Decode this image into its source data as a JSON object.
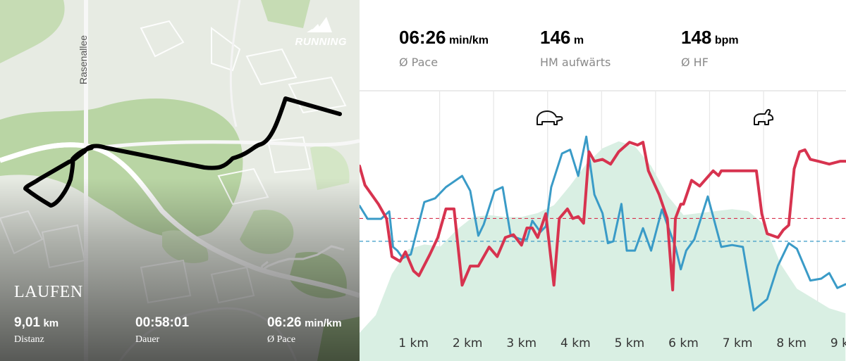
{
  "map": {
    "street_label": "Rasenallee",
    "brand_text": "RUNNING",
    "brand_logo_icon": "adidas-logo-icon",
    "activity_title": "LAUFEN",
    "route_color": "#000000",
    "stats": {
      "distance": {
        "value": "9,01",
        "unit": "km",
        "label": "Distanz"
      },
      "duration": {
        "value": "00:58:01",
        "label": "Dauer"
      },
      "pace": {
        "value": "06:26",
        "unit": "min/km",
        "label": "Ø Pace"
      }
    }
  },
  "summary": {
    "pace": {
      "value": "06:26",
      "unit": "min/km",
      "label": "Ø Pace",
      "color": "#3a9bc7"
    },
    "elevation": {
      "value": "146",
      "unit": "m",
      "label": "HM aufwärts",
      "color": "#4caf6a"
    },
    "heart_rate": {
      "value": "148",
      "unit": "bpm",
      "label": "Ø HF",
      "color": "#d7334f"
    }
  },
  "markers": {
    "slowest_icon": "turtle-icon",
    "fastest_icon": "rabbit-icon"
  },
  "chart_data": {
    "type": "line",
    "x_label_unit": "km",
    "x_ticks": [
      "1 km",
      "2 km",
      "3 km",
      "4 km",
      "5 km",
      "6 km",
      "7 km",
      "8 km",
      "9 km"
    ],
    "xlim": [
      0,
      9.01
    ],
    "grid": "vertical",
    "series": [
      {
        "name": "Ø Pace",
        "color": "#3a9bc7",
        "x": [
          0,
          0.15,
          0.4,
          0.55,
          0.62,
          0.7,
          0.8,
          0.95,
          1.2,
          1.4,
          1.6,
          1.9,
          2.05,
          2.2,
          2.3,
          2.5,
          2.65,
          2.8,
          3.0,
          3.1,
          3.2,
          3.35,
          3.45,
          3.55,
          3.75,
          3.9,
          4.05,
          4.2,
          4.35,
          4.5,
          4.6,
          4.7,
          4.85,
          4.95,
          5.1,
          5.25,
          5.4,
          5.6,
          5.85,
          5.95,
          6.05,
          6.2,
          6.45,
          6.7,
          6.9,
          7.1,
          7.3,
          7.55,
          7.75,
          7.95,
          8.1,
          8.35,
          8.55,
          8.7,
          8.85,
          9.0
        ],
        "y": [
          1.4,
          1.05,
          1.05,
          1.25,
          0.3,
          0.2,
          0.0,
          0.1,
          1.5,
          1.6,
          1.9,
          2.2,
          1.8,
          0.6,
          0.9,
          1.8,
          1.9,
          0.6,
          0.5,
          0.5,
          1.0,
          0.7,
          0.85,
          1.9,
          2.8,
          2.9,
          2.2,
          3.25,
          1.7,
          1.2,
          0.4,
          0.45,
          1.45,
          0.2,
          0.2,
          0.8,
          0.2,
          1.3,
          0.3,
          -0.3,
          0.2,
          0.5,
          1.65,
          0.3,
          0.35,
          0.3,
          -1.4,
          -1.1,
          -0.2,
          0.4,
          0.25,
          -0.6,
          -0.55,
          -0.4,
          -0.8,
          -0.7
        ]
      },
      {
        "name": "Ø HF",
        "color": "#d7334f",
        "x": [
          0,
          0.1,
          0.35,
          0.5,
          0.6,
          0.75,
          0.85,
          1.0,
          1.1,
          1.3,
          1.45,
          1.6,
          1.75,
          1.9,
          2.05,
          2.2,
          2.4,
          2.55,
          2.7,
          2.85,
          3.0,
          3.1,
          3.2,
          3.3,
          3.45,
          3.6,
          3.7,
          3.85,
          3.95,
          4.05,
          4.15,
          4.25,
          4.35,
          4.5,
          4.65,
          4.8,
          5.0,
          5.15,
          5.25,
          5.35,
          5.55,
          5.7,
          5.8,
          5.85,
          5.95,
          6.0,
          6.15,
          6.3,
          6.55,
          6.65,
          6.7,
          6.85,
          7.0,
          7.2,
          7.35,
          7.45,
          7.55,
          7.75,
          7.85,
          7.95,
          8.05,
          8.15,
          8.25,
          8.35,
          8.5,
          8.7,
          8.9,
          9.0
        ],
        "y": [
          153.5,
          151.5,
          149.5,
          148,
          144,
          143.5,
          144.5,
          142.5,
          142,
          144.2,
          146,
          149,
          149,
          141,
          143,
          143,
          145,
          144,
          146,
          146.3,
          145.2,
          147,
          147,
          146,
          148.5,
          141,
          148,
          149,
          148,
          148.2,
          147.5,
          155,
          154,
          154.2,
          153.7,
          155,
          156,
          155.7,
          156,
          153,
          150.5,
          148,
          140.5,
          148,
          149.5,
          149.5,
          152,
          151.4,
          153,
          152.5,
          153,
          153,
          153,
          153,
          153,
          148.5,
          146.4,
          146,
          146.8,
          147.3,
          153.2,
          155,
          155.2,
          154.2,
          154,
          153.7,
          154,
          154
        ]
      },
      {
        "name": "HM aufwärts",
        "color": "#d9efe3",
        "type": "area",
        "x": [
          0,
          0.3,
          0.6,
          0.9,
          1.2,
          1.5,
          1.8,
          2.1,
          2.4,
          2.7,
          3.0,
          3.3,
          3.6,
          3.9,
          4.2,
          4.5,
          4.8,
          5.1,
          5.4,
          5.7,
          6.0,
          6.3,
          6.6,
          6.9,
          7.2,
          7.5,
          7.8,
          8.1,
          8.4,
          8.7,
          9.0
        ],
        "y": [
          0,
          18,
          60,
          85,
          90,
          88,
          105,
          118,
          120,
          118,
          118,
          122,
          130,
          150,
          172,
          188,
          195,
          190,
          170,
          140,
          120,
          122,
          124,
          126,
          124,
          110,
          70,
          45,
          35,
          25,
          20
        ]
      }
    ],
    "reference_lines": [
      {
        "series": "Ø HF",
        "value": 148,
        "color": "#d7334f",
        "style": "dashed"
      },
      {
        "series": "Ø Pace",
        "value": "06:26",
        "color": "#3a9bc7",
        "style": "dashed"
      }
    ]
  }
}
